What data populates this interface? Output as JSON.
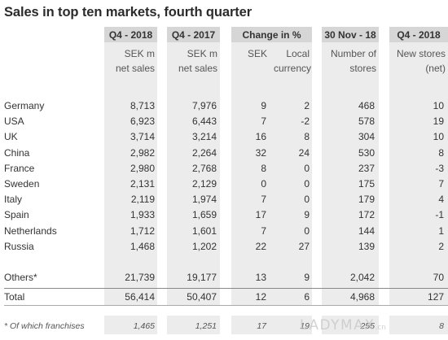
{
  "title": "Sales in top ten markets, fourth quarter",
  "headers": {
    "q4_2018": "Q4 - 2018",
    "q4_2017": "Q4 - 2017",
    "change": "Change in %",
    "nov18": "30 Nov - 18",
    "q4_2018_stores": "Q4 - 2018"
  },
  "subheaders": {
    "q4_2018": [
      "SEK m",
      "net sales"
    ],
    "q4_2017": [
      "SEK m",
      "net sales"
    ],
    "change_sek": "SEK",
    "change_local": [
      "Local",
      "currency"
    ],
    "nov18": [
      "Number of",
      "stores"
    ],
    "stores": [
      "New stores",
      "(net)"
    ]
  },
  "rows": [
    {
      "market": "Germany",
      "q4_2018": "8,713",
      "q4_2017": "7,976",
      "sek": "9",
      "local": "2",
      "stores": "468",
      "new": "10"
    },
    {
      "market": "USA",
      "q4_2018": "6,923",
      "q4_2017": "6,443",
      "sek": "7",
      "local": "-2",
      "stores": "578",
      "new": "19"
    },
    {
      "market": "UK",
      "q4_2018": "3,714",
      "q4_2017": "3,214",
      "sek": "16",
      "local": "8",
      "stores": "304",
      "new": "10"
    },
    {
      "market": "China",
      "q4_2018": "2,982",
      "q4_2017": "2,264",
      "sek": "32",
      "local": "24",
      "stores": "530",
      "new": "8"
    },
    {
      "market": "France",
      "q4_2018": "2,980",
      "q4_2017": "2,768",
      "sek": "8",
      "local": "0",
      "stores": "237",
      "new": "-3"
    },
    {
      "market": "Sweden",
      "q4_2018": "2,131",
      "q4_2017": "2,129",
      "sek": "0",
      "local": "0",
      "stores": "175",
      "new": "7"
    },
    {
      "market": "Italy",
      "q4_2018": "2,119",
      "q4_2017": "1,974",
      "sek": "7",
      "local": "0",
      "stores": "179",
      "new": "4"
    },
    {
      "market": "Spain",
      "q4_2018": "1,933",
      "q4_2017": "1,659",
      "sek": "17",
      "local": "9",
      "stores": "172",
      "new": "-1"
    },
    {
      "market": "Netherlands",
      "q4_2018": "1,712",
      "q4_2017": "1,601",
      "sek": "7",
      "local": "0",
      "stores": "144",
      "new": "1"
    },
    {
      "market": "Russia",
      "q4_2018": "1,468",
      "q4_2017": "1,202",
      "sek": "22",
      "local": "27",
      "stores": "139",
      "new": "2"
    }
  ],
  "others": {
    "market": "Others*",
    "q4_2018": "21,739",
    "q4_2017": "19,177",
    "sek": "13",
    "local": "9",
    "stores": "2,042",
    "new": "70"
  },
  "total": {
    "market": "Total",
    "q4_2018": "56,414",
    "q4_2017": "50,407",
    "sek": "12",
    "local": "6",
    "stores": "4,968",
    "new": "127"
  },
  "franchise": {
    "market": "* Of which franchises",
    "q4_2018": "1,465",
    "q4_2017": "1,251",
    "sek": "17",
    "local": "19",
    "stores": "255",
    "new": "8"
  },
  "watermark": {
    "main": "LADYMAX",
    "suffix": ".cn"
  }
}
